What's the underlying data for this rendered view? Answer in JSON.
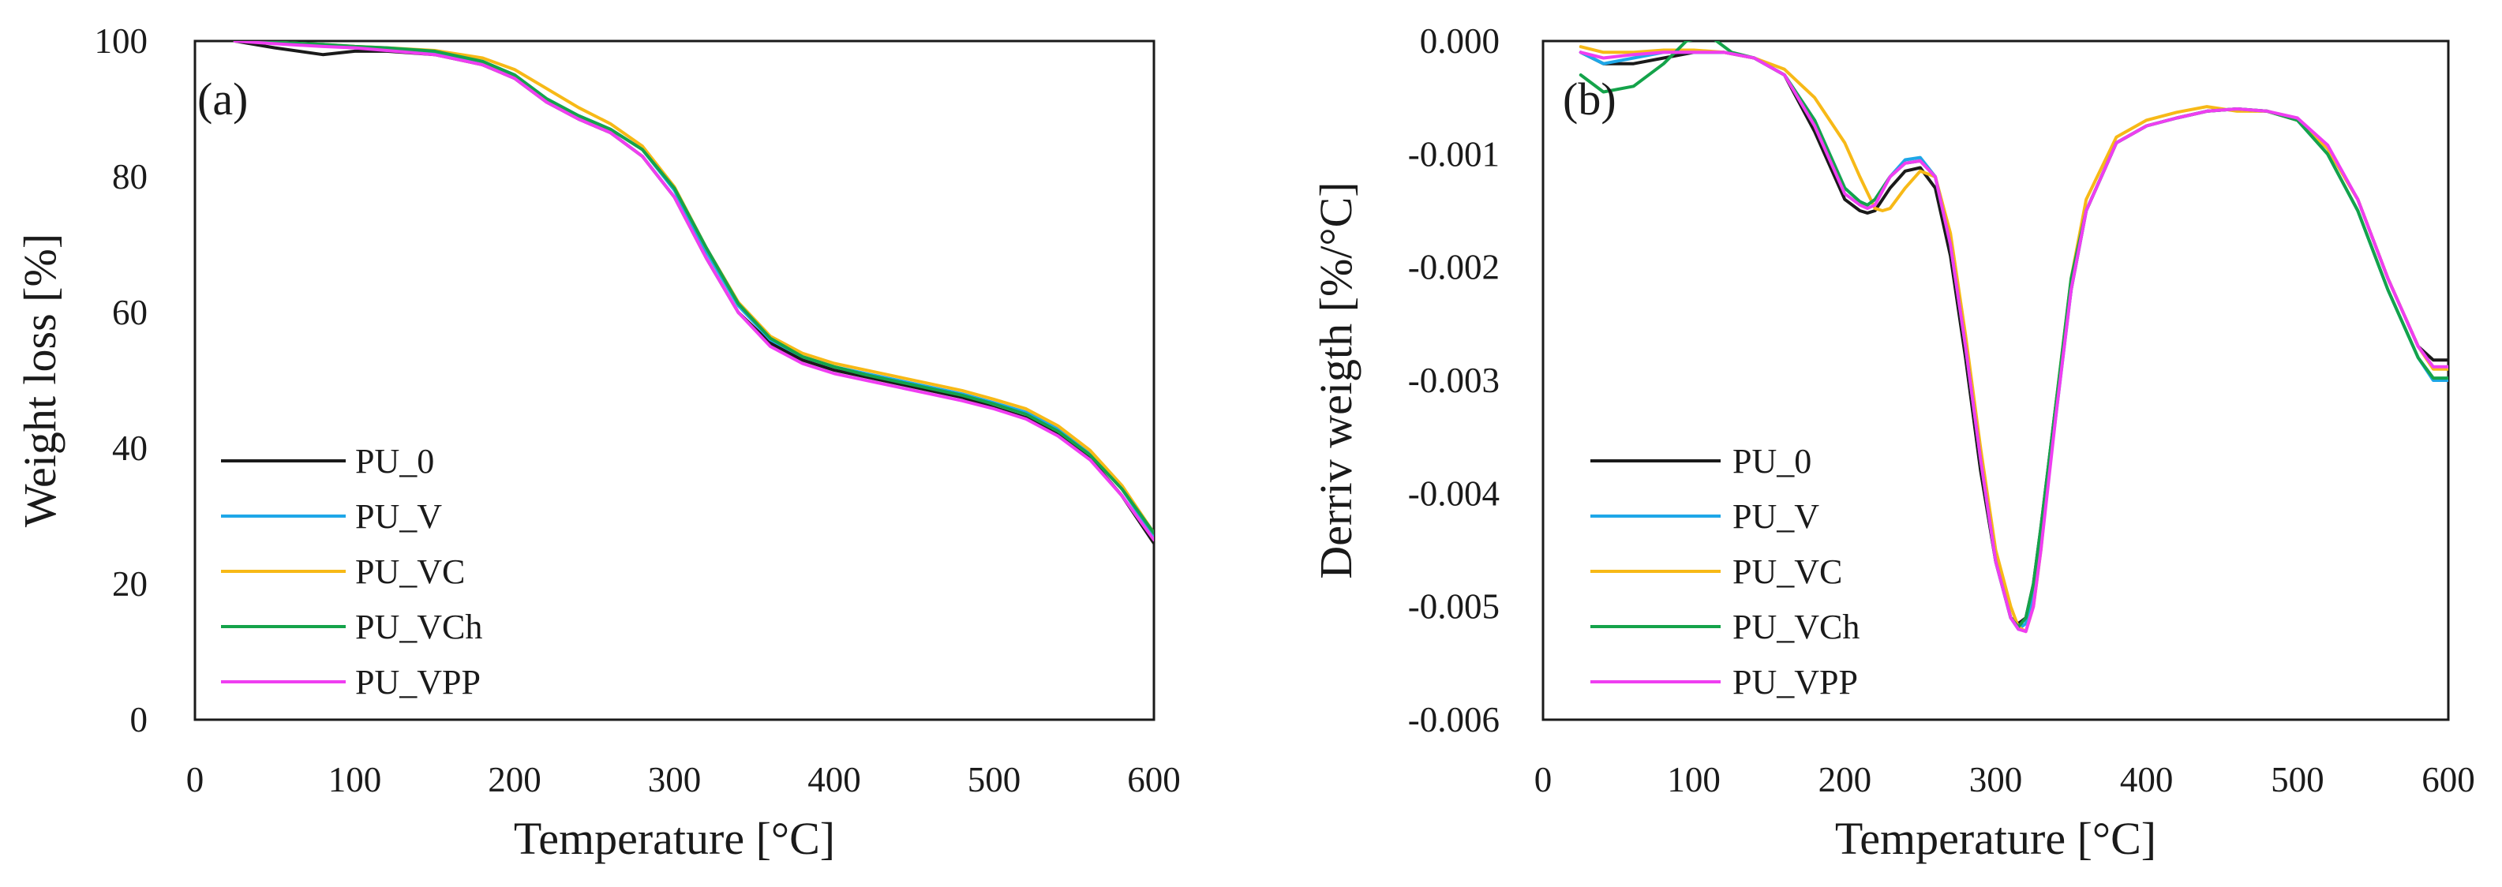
{
  "chart_data": [
    {
      "type": "line",
      "panel_label": "(a)",
      "title": "",
      "xlabel": "Temperature [°C]",
      "ylabel": "Weight loss [%]",
      "xlim": [
        0,
        600
      ],
      "ylim": [
        0,
        100
      ],
      "xticks": [
        "0",
        "100",
        "200",
        "300",
        "400",
        "500",
        "600"
      ],
      "yticks": [
        "0",
        "20",
        "40",
        "60",
        "80",
        "100"
      ],
      "grid": false,
      "legend_position": "bottom-left",
      "series": [
        {
          "name": "PU_0",
          "color": "#1a1a1a",
          "x": [
            25,
            50,
            80,
            100,
            120,
            150,
            180,
            200,
            220,
            240,
            260,
            280,
            300,
            320,
            340,
            360,
            380,
            400,
            420,
            440,
            460,
            480,
            500,
            520,
            540,
            560,
            580,
            600
          ],
          "y": [
            100,
            99,
            98,
            98.5,
            98.5,
            98,
            96.5,
            94.5,
            91,
            88.5,
            86.5,
            83,
            77,
            68,
            60,
            55.5,
            53,
            51.5,
            50.5,
            49.5,
            48.5,
            47.5,
            46,
            44.5,
            42,
            38.5,
            33,
            26
          ]
        },
        {
          "name": "PU_V",
          "color": "#1ea7e8",
          "x": [
            25,
            50,
            80,
            100,
            120,
            150,
            180,
            200,
            220,
            240,
            260,
            280,
            300,
            320,
            340,
            360,
            380,
            400,
            420,
            440,
            460,
            480,
            500,
            520,
            540,
            560,
            580,
            600
          ],
          "y": [
            100,
            99.8,
            99.5,
            99,
            98.8,
            98.3,
            97,
            95,
            91.5,
            89,
            87,
            84,
            78,
            69,
            61,
            56,
            53.5,
            52,
            51,
            50,
            49,
            48,
            46.7,
            45.3,
            42.8,
            39.2,
            34,
            27
          ]
        },
        {
          "name": "PU_VC",
          "color": "#f7b917",
          "x": [
            25,
            50,
            80,
            100,
            120,
            150,
            180,
            200,
            220,
            240,
            260,
            280,
            300,
            320,
            340,
            360,
            380,
            400,
            420,
            440,
            460,
            480,
            500,
            520,
            540,
            560,
            580,
            600
          ],
          "y": [
            100,
            99.8,
            99.5,
            99.2,
            99,
            98.6,
            97.5,
            95.8,
            93,
            90.2,
            87.8,
            84.5,
            78.5,
            69.5,
            61.5,
            56.5,
            54,
            52.5,
            51.5,
            50.5,
            49.5,
            48.5,
            47.2,
            45.8,
            43.3,
            39.7,
            34.5,
            27.5
          ]
        },
        {
          "name": "PU_VCh",
          "color": "#14a34a",
          "x": [
            25,
            50,
            80,
            100,
            120,
            150,
            180,
            200,
            220,
            240,
            260,
            280,
            300,
            320,
            340,
            360,
            380,
            400,
            420,
            440,
            460,
            480,
            500,
            520,
            540,
            560,
            580,
            600
          ],
          "y": [
            100,
            99.8,
            99.5,
            99.2,
            99,
            98.5,
            97,
            95,
            91.5,
            89,
            87,
            84,
            78.3,
            69.5,
            61.3,
            56.2,
            53.5,
            52,
            50.8,
            49.8,
            48.8,
            47.8,
            46.5,
            45,
            42.5,
            39,
            34,
            27.5
          ]
        },
        {
          "name": "PU_VPP",
          "color": "#ef3ef1",
          "x": [
            25,
            50,
            80,
            100,
            120,
            150,
            180,
            200,
            220,
            240,
            260,
            280,
            300,
            320,
            340,
            360,
            380,
            400,
            420,
            440,
            460,
            480,
            500,
            520,
            540,
            560,
            580,
            600
          ],
          "y": [
            100,
            99.6,
            99.2,
            99,
            98.6,
            98,
            96.5,
            94.5,
            91,
            88.5,
            86.5,
            83,
            77,
            68,
            60,
            55,
            52.5,
            51,
            50,
            49,
            48,
            47,
            45.8,
            44.3,
            41.8,
            38.3,
            33,
            26.5
          ]
        }
      ]
    },
    {
      "type": "line",
      "panel_label": "(b)",
      "title": "",
      "xlabel": "Temperature [°C]",
      "ylabel": "Derriv weigth [%/°C]",
      "xlim": [
        0,
        600
      ],
      "ylim": [
        -0.006,
        0
      ],
      "xticks": [
        "0",
        "100",
        "200",
        "300",
        "400",
        "500",
        "600"
      ],
      "yticks": [
        "-0.006",
        "-0.005",
        "-0.004",
        "-0.003",
        "-0.002",
        "-0.001",
        "0.000"
      ],
      "grid": false,
      "legend_position": "bottom-left",
      "series": [
        {
          "name": "PU_0",
          "color": "#1a1a1a",
          "x": [
            25,
            40,
            60,
            80,
            100,
            120,
            140,
            160,
            180,
            200,
            210,
            215,
            220,
            230,
            240,
            250,
            260,
            270,
            280,
            290,
            300,
            310,
            315,
            320,
            325,
            330,
            340,
            350,
            360,
            380,
            400,
            420,
            440,
            460,
            480,
            500,
            520,
            540,
            560,
            580,
            590,
            600
          ],
          "y": [
            -0.0001,
            -0.0002,
            -0.0002,
            -0.00015,
            -0.0001,
            -0.0001,
            -0.00015,
            -0.0003,
            -0.0008,
            -0.0014,
            -0.0015,
            -0.00152,
            -0.0015,
            -0.0013,
            -0.00115,
            -0.00112,
            -0.0013,
            -0.0019,
            -0.0028,
            -0.0038,
            -0.0046,
            -0.0051,
            -0.00515,
            -0.0051,
            -0.0048,
            -0.0043,
            -0.0032,
            -0.0022,
            -0.0015,
            -0.0009,
            -0.00075,
            -0.00068,
            -0.00062,
            -0.0006,
            -0.00062,
            -0.0007,
            -0.00095,
            -0.0014,
            -0.0021,
            -0.0027,
            -0.00282,
            -0.00282
          ]
        },
        {
          "name": "PU_V",
          "color": "#1ea7e8",
          "x": [
            25,
            40,
            60,
            80,
            100,
            120,
            140,
            160,
            180,
            200,
            210,
            215,
            220,
            230,
            240,
            250,
            260,
            270,
            280,
            290,
            300,
            310,
            315,
            320,
            325,
            330,
            340,
            350,
            360,
            380,
            400,
            420,
            440,
            460,
            480,
            500,
            520,
            540,
            560,
            580,
            590,
            600
          ],
          "y": [
            -0.0001,
            -0.0002,
            -0.00015,
            -0.0001,
            -0.0001,
            -0.0001,
            -0.00015,
            -0.0003,
            -0.0007,
            -0.0013,
            -0.00142,
            -0.00145,
            -0.0014,
            -0.0012,
            -0.00105,
            -0.00103,
            -0.0012,
            -0.0018,
            -0.0027,
            -0.0037,
            -0.0046,
            -0.0051,
            -0.0052,
            -0.00515,
            -0.0049,
            -0.0044,
            -0.0033,
            -0.0022,
            -0.0015,
            -0.0009,
            -0.00075,
            -0.00068,
            -0.00062,
            -0.0006,
            -0.00062,
            -0.0007,
            -0.001,
            -0.0015,
            -0.0022,
            -0.0028,
            -0.003,
            -0.003
          ]
        },
        {
          "name": "PU_VC",
          "color": "#f7b917",
          "x": [
            25,
            40,
            60,
            80,
            100,
            120,
            140,
            160,
            180,
            200,
            210,
            220,
            225,
            230,
            240,
            250,
            260,
            270,
            280,
            290,
            300,
            310,
            315,
            320,
            325,
            330,
            340,
            350,
            360,
            380,
            400,
            420,
            440,
            460,
            480,
            500,
            520,
            540,
            560,
            580,
            590,
            600
          ],
          "y": [
            -5e-05,
            -0.0001,
            -0.0001,
            -8e-05,
            -8e-05,
            -0.0001,
            -0.00015,
            -0.00025,
            -0.0005,
            -0.0009,
            -0.0012,
            -0.00148,
            -0.0015,
            -0.00148,
            -0.0013,
            -0.00115,
            -0.0012,
            -0.0017,
            -0.0026,
            -0.0036,
            -0.0045,
            -0.005,
            -0.00518,
            -0.00522,
            -0.005,
            -0.0045,
            -0.0032,
            -0.0021,
            -0.0014,
            -0.00085,
            -0.0007,
            -0.00063,
            -0.00058,
            -0.00062,
            -0.00062,
            -0.0007,
            -0.00095,
            -0.0014,
            -0.0021,
            -0.0027,
            -0.0029,
            -0.0029
          ]
        },
        {
          "name": "PU_VCh",
          "color": "#14a34a",
          "x": [
            25,
            40,
            60,
            80,
            95,
            110,
            125,
            140,
            160,
            180,
            200,
            210,
            215,
            220,
            230,
            240,
            250,
            260,
            270,
            280,
            290,
            300,
            310,
            315,
            320,
            325,
            330,
            340,
            350,
            360,
            380,
            400,
            420,
            440,
            460,
            480,
            500,
            520,
            540,
            560,
            580,
            590,
            600
          ],
          "y": [
            -0.0003,
            -0.00045,
            -0.0004,
            -0.0002,
            0,
            5e-05,
            -0.0001,
            -0.00015,
            -0.0003,
            -0.0007,
            -0.0013,
            -0.00142,
            -0.00145,
            -0.0014,
            -0.0012,
            -0.00108,
            -0.00106,
            -0.0012,
            -0.0018,
            -0.0027,
            -0.0037,
            -0.0046,
            -0.0051,
            -0.00518,
            -0.0051,
            -0.0048,
            -0.0043,
            -0.0032,
            -0.0021,
            -0.0015,
            -0.0009,
            -0.00075,
            -0.00068,
            -0.00062,
            -0.0006,
            -0.00062,
            -0.0007,
            -0.001,
            -0.0015,
            -0.0022,
            -0.0028,
            -0.00298,
            -0.00298
          ]
        },
        {
          "name": "PU_VPP",
          "color": "#ef3ef1",
          "x": [
            25,
            40,
            60,
            80,
            100,
            120,
            140,
            160,
            180,
            200,
            210,
            215,
            220,
            230,
            240,
            250,
            260,
            270,
            280,
            290,
            300,
            310,
            315,
            320,
            325,
            330,
            340,
            350,
            360,
            380,
            400,
            420,
            440,
            460,
            480,
            500,
            520,
            540,
            560,
            580,
            590,
            600
          ],
          "y": [
            -0.0001,
            -0.00015,
            -0.00012,
            -0.0001,
            -0.0001,
            -0.0001,
            -0.00015,
            -0.0003,
            -0.00075,
            -0.00135,
            -0.00145,
            -0.00148,
            -0.00145,
            -0.0012,
            -0.00108,
            -0.00106,
            -0.0012,
            -0.0018,
            -0.0027,
            -0.0037,
            -0.0046,
            -0.0051,
            -0.0052,
            -0.00522,
            -0.005,
            -0.0045,
            -0.0033,
            -0.0022,
            -0.0015,
            -0.0009,
            -0.00075,
            -0.00068,
            -0.00062,
            -0.0006,
            -0.00062,
            -0.00068,
            -0.00092,
            -0.0014,
            -0.0021,
            -0.0027,
            -0.00288,
            -0.00288
          ]
        }
      ]
    }
  ]
}
